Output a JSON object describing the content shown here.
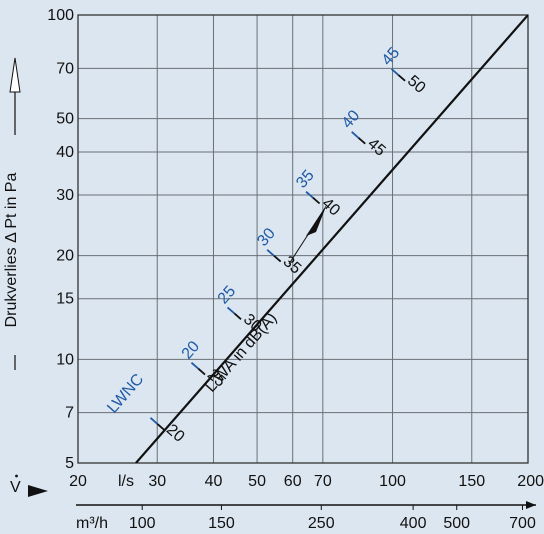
{
  "chart_data": {
    "type": "line",
    "scale": "log-log",
    "ylabel": "Drukverlies Δ Pt in Pa",
    "xlabel_symbol": "V",
    "x_units_primary": "l/s",
    "x_units_secondary": "m³/h",
    "ylim": [
      5,
      100
    ],
    "xlim_ls": [
      20,
      200
    ],
    "y_ticks": [
      5,
      7,
      10,
      15,
      20,
      30,
      40,
      50,
      70,
      100
    ],
    "x_ticks_ls": [
      20,
      30,
      40,
      50,
      60,
      70,
      100,
      150,
      200
    ],
    "x_ticks_m3h": [
      100,
      150,
      250,
      400,
      500,
      700
    ],
    "series": [
      {
        "name": "",
        "x_ls": [
          26.9,
          200
        ],
        "y_pa": [
          5,
          100
        ]
      }
    ],
    "line_marks": [
      {
        "x_ls": 30.0,
        "y_pa": 6.5,
        "lwnc": "",
        "lwa": "20"
      },
      {
        "x_ls": 37.0,
        "y_pa": 9.4,
        "lwnc": "20",
        "lwa": "25"
      },
      {
        "x_ls": 44.5,
        "y_pa": 13.6,
        "lwnc": "25",
        "lwa": "30"
      },
      {
        "x_ls": 54.5,
        "y_pa": 20.0,
        "lwnc": "30",
        "lwa": "35"
      },
      {
        "x_ls": 66.5,
        "y_pa": 29.5,
        "lwnc": "35",
        "lwa": "40"
      },
      {
        "x_ls": 84.0,
        "y_pa": 44.0,
        "lwnc": "40",
        "lwa": "45"
      },
      {
        "x_ls": 103.0,
        "y_pa": 67.0,
        "lwnc": "45",
        "lwa": "50"
      }
    ],
    "annotations": {
      "lwnc_label": "LWNC",
      "lwa_label": "L WA in dB(A)"
    },
    "grid": true,
    "colors": {
      "background": "#dce6f0",
      "line": "#111111",
      "blue_labels": "#1f5aa6"
    }
  }
}
